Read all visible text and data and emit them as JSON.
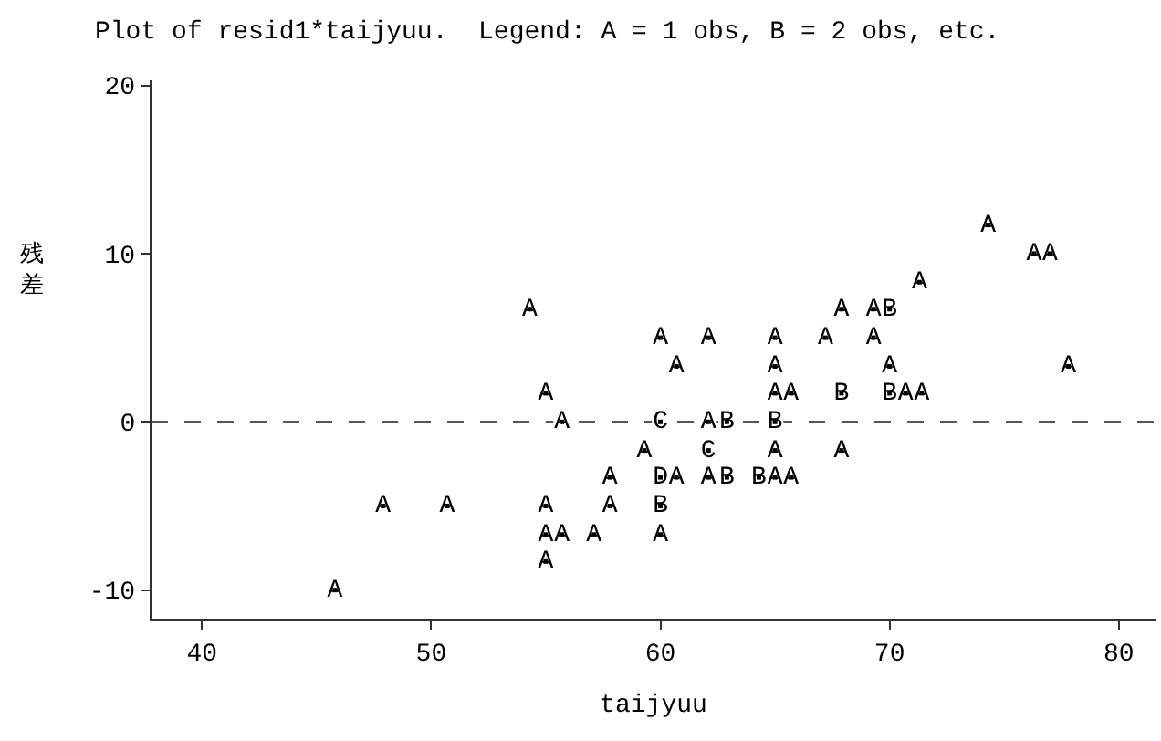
{
  "chart_data": {
    "type": "scatter",
    "title": "Plot of resid1*taijyuu.  Legend: A = 1 obs, B = 2 obs, etc.",
    "xlabel": "taijyuu",
    "ylabel": "残差",
    "x": [
      74.3,
      76.3,
      77.0,
      71.3,
      54.3,
      67.9,
      69.3,
      70.0,
      60.0,
      62.1,
      65.0,
      67.2,
      69.3,
      60.7,
      65.0,
      70.0,
      77.8,
      55.0,
      65.0,
      65.7,
      67.9,
      70.0,
      70.7,
      71.4,
      55.7,
      60.0,
      62.1,
      62.9,
      65.0,
      59.3,
      62.1,
      65.0,
      67.9,
      57.8,
      60.0,
      60.7,
      62.1,
      62.9,
      64.3,
      65.0,
      65.7,
      47.9,
      50.7,
      55.0,
      57.8,
      60.0,
      55.0,
      55.7,
      57.1,
      60.0,
      55.0,
      45.8
    ],
    "values": [
      11.7,
      10,
      10,
      8.3,
      6.7,
      6.7,
      6.7,
      6.7,
      5,
      5,
      5,
      5,
      5,
      3.3,
      3.3,
      3.3,
      3.3,
      1.7,
      1.7,
      1.7,
      1.7,
      1.7,
      1.7,
      1.7,
      0,
      0,
      0,
      0,
      0,
      -1.7,
      -1.7,
      -1.7,
      -1.7,
      -3.3,
      -3.3,
      -3.3,
      -3.3,
      -3.3,
      -3.3,
      -3.3,
      -3.3,
      -5,
      -5,
      -5,
      -5,
      -5,
      -6.7,
      -6.7,
      -6.7,
      -6.7,
      -8.3,
      -10
    ],
    "value_labels": [
      "A",
      "A",
      "A",
      "A",
      "A",
      "A",
      "A",
      "B",
      "A",
      "A",
      "A",
      "A",
      "A",
      "A",
      "A",
      "A",
      "A",
      "A",
      "A",
      "A",
      "B",
      "B",
      "A",
      "A",
      "A",
      "C",
      "A",
      "B",
      "B",
      "A",
      "C",
      "A",
      "A",
      "A",
      "D",
      "A",
      "A",
      "B",
      "B",
      "A",
      "A",
      "A",
      "A",
      "A",
      "A",
      "B",
      "A",
      "A",
      "A",
      "A",
      "A",
      "A"
    ],
    "color": "#000000",
    "marker": "square",
    "xlim": [
      37.8,
      81.6
    ],
    "xticks": [
      40,
      50,
      60,
      70,
      80
    ],
    "ylim": [
      -11.7,
      20.3
    ],
    "yticks": [
      -10,
      0,
      10,
      20
    ],
    "ref_lines": [
      {
        "axis": "y",
        "value": 0,
        "line_style": "dashed",
        "color": "#555555"
      }
    ]
  }
}
